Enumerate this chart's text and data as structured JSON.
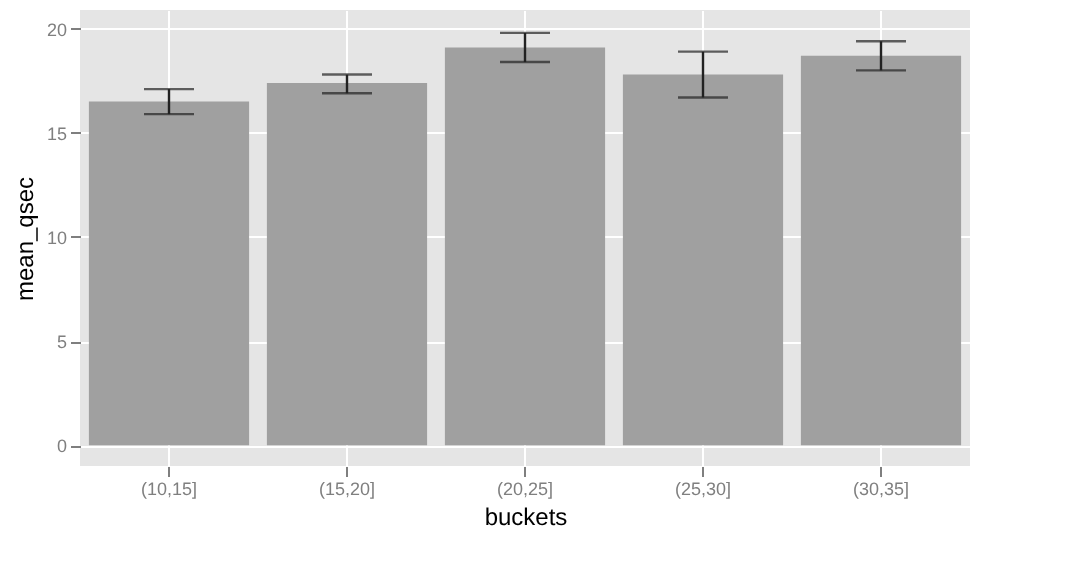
{
  "chart_data": {
    "type": "bar",
    "xlabel": "buckets",
    "ylabel": "mean_qsec",
    "categories": [
      "(10,15]",
      "(15,20]",
      "(20,25]",
      "(25,30]",
      "(30,35]"
    ],
    "values": [
      16.5,
      17.4,
      19.1,
      17.8,
      18.7
    ],
    "errors": [
      [
        15.9,
        17.1
      ],
      [
        16.9,
        17.8
      ],
      [
        18.4,
        19.8
      ],
      [
        16.7,
        18.9
      ],
      [
        18.0,
        19.4
      ]
    ],
    "color": "#a0a0a0",
    "ylim": [
      -1,
      20.9
    ],
    "yticks": [
      0,
      5,
      10,
      15,
      20
    ],
    "grid": true
  }
}
